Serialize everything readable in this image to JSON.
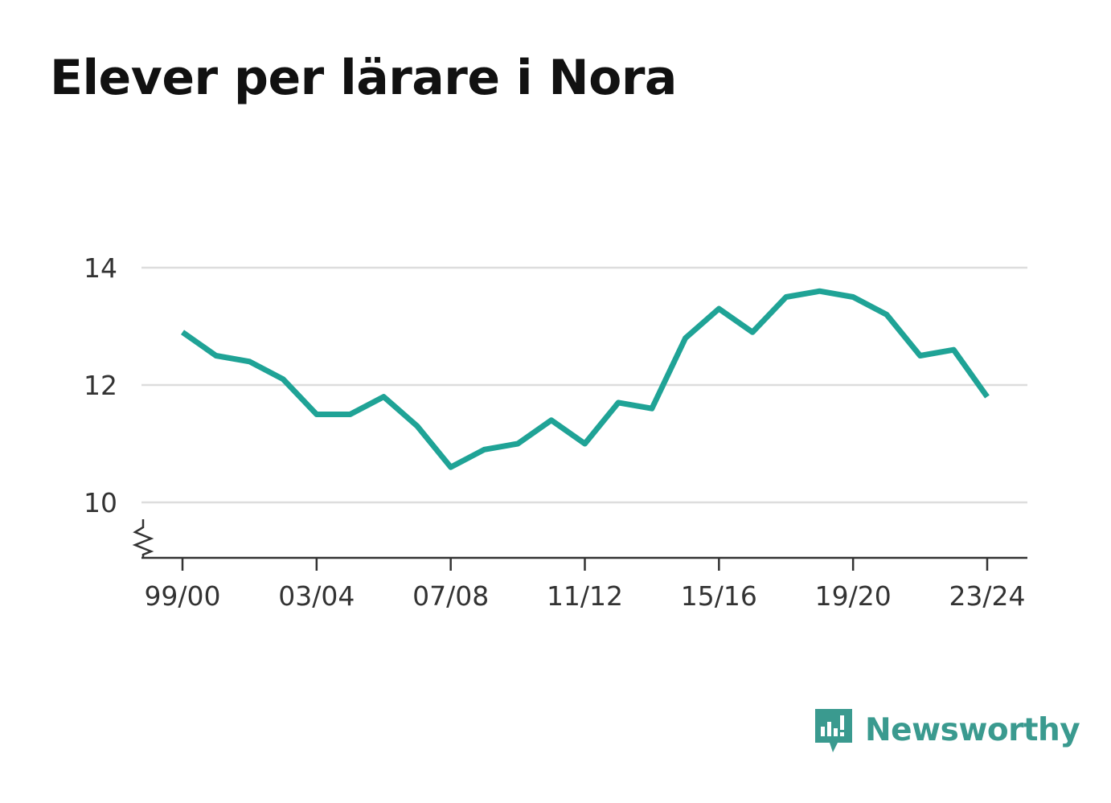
{
  "chart_data": {
    "type": "line",
    "title": "Elever per lärare i Nora",
    "xlabel": "",
    "ylabel": "",
    "x": [
      "99/00",
      "00/01",
      "01/02",
      "02/03",
      "03/04",
      "04/05",
      "05/06",
      "06/07",
      "07/08",
      "08/09",
      "09/10",
      "10/11",
      "11/12",
      "12/13",
      "13/14",
      "14/15",
      "15/16",
      "16/17",
      "17/18",
      "18/19",
      "19/20",
      "20/21",
      "21/22",
      "22/23",
      "23/24"
    ],
    "x_tick_labels": [
      "99/00",
      "03/04",
      "07/08",
      "11/12",
      "15/16",
      "19/20",
      "23/24"
    ],
    "y_ticks": [
      10,
      12,
      14
    ],
    "ylim": [
      9.0,
      14.2
    ],
    "y_axis_break": true,
    "grid": true,
    "line_color": "#1fa396",
    "series": [
      {
        "values": [
          12.9,
          12.5,
          12.4,
          12.1,
          11.5,
          11.5,
          11.8,
          11.3,
          10.6,
          10.9,
          11.0,
          11.4,
          11.0,
          11.7,
          11.6,
          12.8,
          13.3,
          12.9,
          13.5,
          13.6,
          13.5,
          13.2,
          12.5,
          12.6,
          11.8
        ]
      }
    ]
  },
  "brand": {
    "name": "Newsworthy",
    "icon": "newsworthy-logo-icon",
    "color": "#3a9a8f"
  }
}
